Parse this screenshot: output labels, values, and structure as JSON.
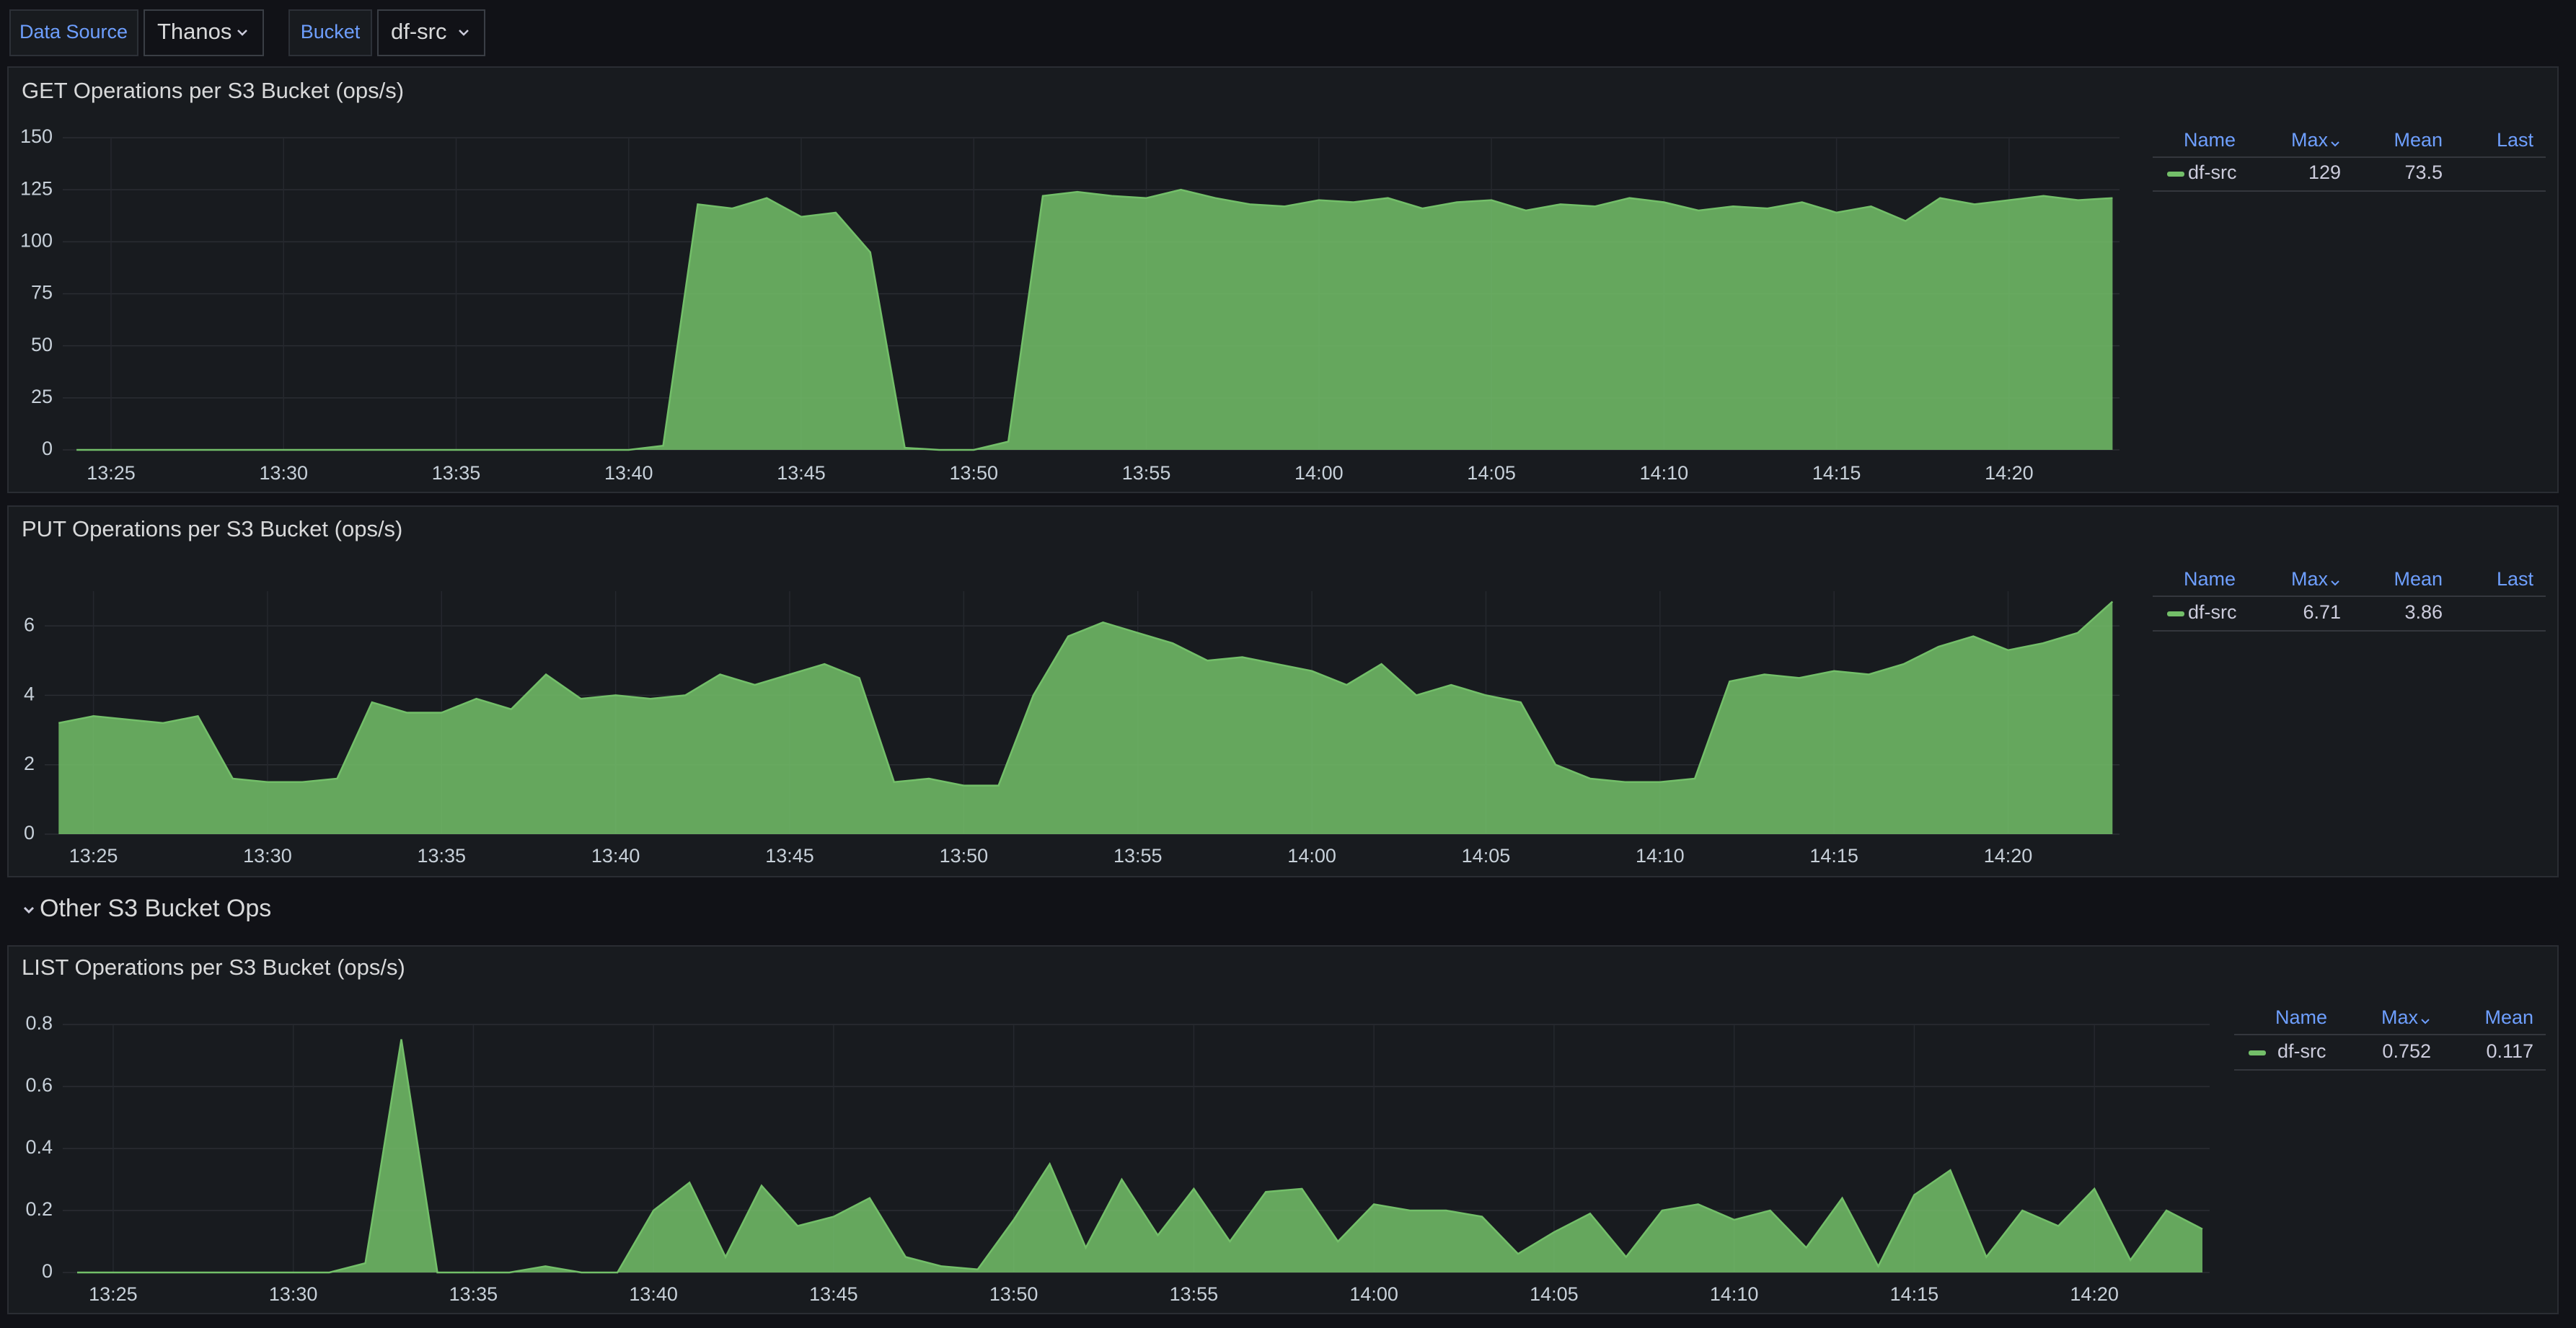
{
  "toolbar": {
    "variables": [
      {
        "label": "Data Source",
        "value": "Thanos"
      },
      {
        "label": "Bucket",
        "value": "df-src"
      }
    ]
  },
  "row_title": "Other S3 Bucket Ops",
  "chart_data": [
    {
      "type": "area",
      "title": "GET Operations per S3 Bucket (ops/s)",
      "x": [
        "13:24",
        "13:25",
        "13:26",
        "13:27",
        "13:28",
        "13:29",
        "13:30",
        "13:31",
        "13:32",
        "13:33",
        "13:34",
        "13:35",
        "13:36",
        "13:37",
        "13:38",
        "13:39",
        "13:40",
        "13:41",
        "13:42",
        "13:43",
        "13:44",
        "13:45",
        "13:46",
        "13:47",
        "13:48",
        "13:49",
        "13:50",
        "13:51",
        "13:52",
        "13:53",
        "13:54",
        "13:55",
        "13:56",
        "13:57",
        "13:58",
        "13:59",
        "14:00",
        "14:01",
        "14:02",
        "14:03",
        "14:04",
        "14:05",
        "14:06",
        "14:07",
        "14:08",
        "14:09",
        "14:10",
        "14:11",
        "14:12",
        "14:13",
        "14:14",
        "14:15",
        "14:16",
        "14:17",
        "14:18",
        "14:19",
        "14:20",
        "14:21",
        "14:22",
        "14:23"
      ],
      "xticks": [
        "13:25",
        "13:30",
        "13:35",
        "13:40",
        "13:45",
        "13:50",
        "13:55",
        "14:00",
        "14:05",
        "14:10",
        "14:15",
        "14:20"
      ],
      "ylim": [
        0,
        150
      ],
      "yticks": [
        0,
        25,
        50,
        75,
        100,
        125,
        150
      ],
      "grid": true,
      "series": [
        {
          "name": "df-src",
          "color": "#73bf69",
          "values": [
            0,
            0,
            0,
            0,
            0,
            0,
            0,
            0,
            0,
            0,
            0,
            0,
            0,
            0,
            0,
            0,
            0,
            2,
            118,
            116,
            121,
            112,
            114,
            95,
            1,
            0,
            0,
            4,
            122,
            124,
            122,
            121,
            125,
            121,
            118,
            117,
            120,
            119,
            121,
            116,
            119,
            120,
            115,
            118,
            117,
            121,
            119,
            115,
            117,
            116,
            119,
            114,
            117,
            110,
            121,
            118,
            120,
            122,
            120,
            121
          ]
        }
      ],
      "legend": {
        "columns": [
          "Name",
          "Max",
          "Mean",
          "Last"
        ],
        "max": 129,
        "mean": 73.5
      }
    },
    {
      "type": "area",
      "title": "PUT Operations per S3 Bucket (ops/s)",
      "x": [
        "13:24",
        "13:25",
        "13:26",
        "13:27",
        "13:28",
        "13:29",
        "13:30",
        "13:31",
        "13:32",
        "13:33",
        "13:34",
        "13:35",
        "13:36",
        "13:37",
        "13:38",
        "13:39",
        "13:40",
        "13:41",
        "13:42",
        "13:43",
        "13:44",
        "13:45",
        "13:46",
        "13:47",
        "13:48",
        "13:49",
        "13:50",
        "13:51",
        "13:52",
        "13:53",
        "13:54",
        "13:55",
        "13:56",
        "13:57",
        "13:58",
        "13:59",
        "14:00",
        "14:01",
        "14:02",
        "14:03",
        "14:04",
        "14:05",
        "14:06",
        "14:07",
        "14:08",
        "14:09",
        "14:10",
        "14:11",
        "14:12",
        "14:13",
        "14:14",
        "14:15",
        "14:16",
        "14:17",
        "14:18",
        "14:19",
        "14:20",
        "14:21",
        "14:22",
        "14:23"
      ],
      "xticks": [
        "13:25",
        "13:30",
        "13:35",
        "13:40",
        "13:45",
        "13:50",
        "13:55",
        "14:00",
        "14:05",
        "14:10",
        "14:15",
        "14:20"
      ],
      "ylim": [
        0,
        7
      ],
      "yticks": [
        0,
        2,
        4,
        6
      ],
      "grid": true,
      "series": [
        {
          "name": "df-src",
          "color": "#73bf69",
          "values": [
            3.2,
            3.4,
            3.3,
            3.2,
            3.4,
            1.6,
            1.5,
            1.5,
            1.6,
            3.8,
            3.5,
            3.5,
            3.9,
            3.6,
            4.6,
            3.9,
            4.0,
            3.9,
            4.0,
            4.6,
            4.3,
            4.6,
            4.9,
            4.5,
            1.5,
            1.6,
            1.4,
            1.4,
            4.0,
            5.7,
            6.1,
            5.8,
            5.5,
            5.0,
            5.1,
            4.9,
            4.7,
            4.3,
            4.9,
            4.0,
            4.3,
            4.0,
            3.8,
            2.0,
            1.6,
            1.5,
            1.5,
            1.6,
            4.4,
            4.6,
            4.5,
            4.7,
            4.6,
            4.9,
            5.4,
            5.7,
            5.3,
            5.5,
            5.8,
            6.7
          ]
        }
      ],
      "legend": {
        "columns": [
          "Name",
          "Max",
          "Mean",
          "Last"
        ],
        "max": 6.71,
        "mean": 3.86
      }
    },
    {
      "type": "area",
      "title": "LIST Operations per S3 Bucket (ops/s)",
      "x": [
        "13:24",
        "13:25",
        "13:26",
        "13:27",
        "13:28",
        "13:29",
        "13:30",
        "13:31",
        "13:32",
        "13:33",
        "13:34",
        "13:35",
        "13:36",
        "13:37",
        "13:38",
        "13:39",
        "13:40",
        "13:41",
        "13:42",
        "13:43",
        "13:44",
        "13:45",
        "13:46",
        "13:47",
        "13:48",
        "13:49",
        "13:50",
        "13:51",
        "13:52",
        "13:53",
        "13:54",
        "13:55",
        "13:56",
        "13:57",
        "13:58",
        "13:59",
        "14:00",
        "14:01",
        "14:02",
        "14:03",
        "14:04",
        "14:05",
        "14:06",
        "14:07",
        "14:08",
        "14:09",
        "14:10",
        "14:11",
        "14:12",
        "14:13",
        "14:14",
        "14:15",
        "14:16",
        "14:17",
        "14:18",
        "14:19",
        "14:20",
        "14:21",
        "14:22",
        "14:23"
      ],
      "xticks": [
        "13:25",
        "13:30",
        "13:35",
        "13:40",
        "13:45",
        "13:50",
        "13:55",
        "14:00",
        "14:05",
        "14:10",
        "14:15",
        "14:20"
      ],
      "ylim": [
        0,
        0.8
      ],
      "yticks": [
        0,
        0.2,
        0.4,
        0.6,
        0.8
      ],
      "grid": true,
      "series": [
        {
          "name": "df-src",
          "color": "#73bf69",
          "values": [
            0,
            0,
            0,
            0,
            0,
            0,
            0,
            0,
            0.03,
            0.752,
            0,
            0,
            0,
            0.02,
            0,
            0,
            0.2,
            0.29,
            0.05,
            0.28,
            0.15,
            0.18,
            0.24,
            0.05,
            0.02,
            0.01,
            0.17,
            0.35,
            0.08,
            0.3,
            0.12,
            0.27,
            0.1,
            0.26,
            0.27,
            0.1,
            0.22,
            0.2,
            0.2,
            0.18,
            0.06,
            0.13,
            0.19,
            0.05,
            0.2,
            0.22,
            0.17,
            0.2,
            0.08,
            0.24,
            0.02,
            0.25,
            0.33,
            0.05,
            0.2,
            0.15,
            0.27,
            0.04,
            0.2,
            0.14
          ]
        }
      ],
      "legend": {
        "columns": [
          "Name",
          "Max",
          "Mean"
        ],
        "max": 0.752,
        "mean": 0.117
      }
    }
  ]
}
